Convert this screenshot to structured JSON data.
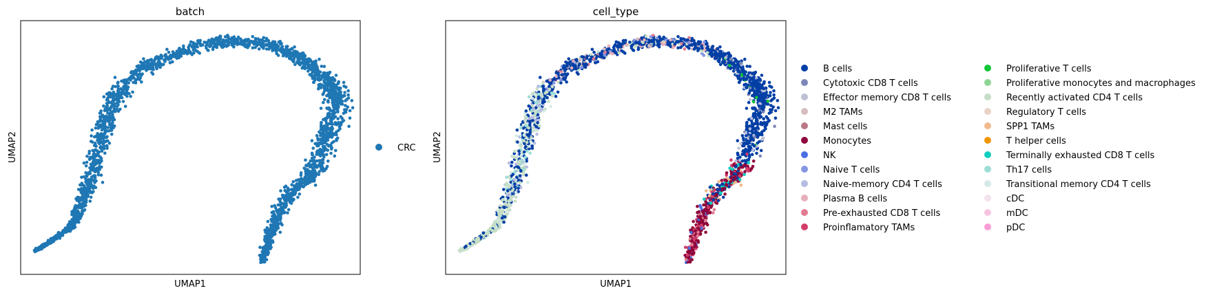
{
  "chart_data": [
    {
      "type": "scatter",
      "title": "batch",
      "xlabel": "UMAP1",
      "ylabel": "UMAP2",
      "xlim": [
        0,
        100
      ],
      "ylim": [
        0,
        100
      ],
      "grid": false,
      "legend_placement": "right",
      "legend": [
        {
          "label": "CRC",
          "color": "#1f77b4"
        }
      ]
    },
    {
      "type": "scatter",
      "title": "cell_type",
      "xlabel": "UMAP1",
      "ylabel": "UMAP2",
      "xlim": [
        0,
        100
      ],
      "ylim": [
        0,
        100
      ],
      "grid": false,
      "legend_placement": "right",
      "legend": [
        {
          "label": "B cells",
          "color": "#023fa5"
        },
        {
          "label": "Cytotoxic CD8 T cells",
          "color": "#7d87b9"
        },
        {
          "label": "Effector memory CD8 T cells",
          "color": "#bec1d4"
        },
        {
          "label": "M2 TAMs",
          "color": "#d6bcc0"
        },
        {
          "label": "Mast cells",
          "color": "#bb7784"
        },
        {
          "label": "Monocytes",
          "color": "#8e063b"
        },
        {
          "label": "NK",
          "color": "#4a6fe3"
        },
        {
          "label": "Naive T cells",
          "color": "#8595e1"
        },
        {
          "label": "Naive-memory CD4 T cells",
          "color": "#b5bbe3"
        },
        {
          "label": "Plasma B cells",
          "color": "#e6afb9"
        },
        {
          "label": "Pre-exhausted CD8 T cells",
          "color": "#e07b91"
        },
        {
          "label": "Proinflamatory TAMs",
          "color": "#d33f6a"
        },
        {
          "label": "Proliferative T cells",
          "color": "#11c638"
        },
        {
          "label": "Proliferative monocytes and macrophages",
          "color": "#8dd593"
        },
        {
          "label": "Recently activated CD4 T cells",
          "color": "#c6dec7"
        },
        {
          "label": "Regulatory T cells",
          "color": "#ead3c6"
        },
        {
          "label": "SPP1 TAMs",
          "color": "#f0b98d"
        },
        {
          "label": "T helper cells",
          "color": "#ef9708"
        },
        {
          "label": "Terminally exhausted CD8 T cells",
          "color": "#0fcfc0"
        },
        {
          "label": "Th17 cells",
          "color": "#9cded6"
        },
        {
          "label": "Transitional memory CD4 T cells",
          "color": "#d5eae7"
        },
        {
          "label": "cDC",
          "color": "#f3e1eb"
        },
        {
          "label": "mDC",
          "color": "#f6c4e1"
        },
        {
          "label": "pDC",
          "color": "#f79cd4"
        }
      ]
    }
  ]
}
